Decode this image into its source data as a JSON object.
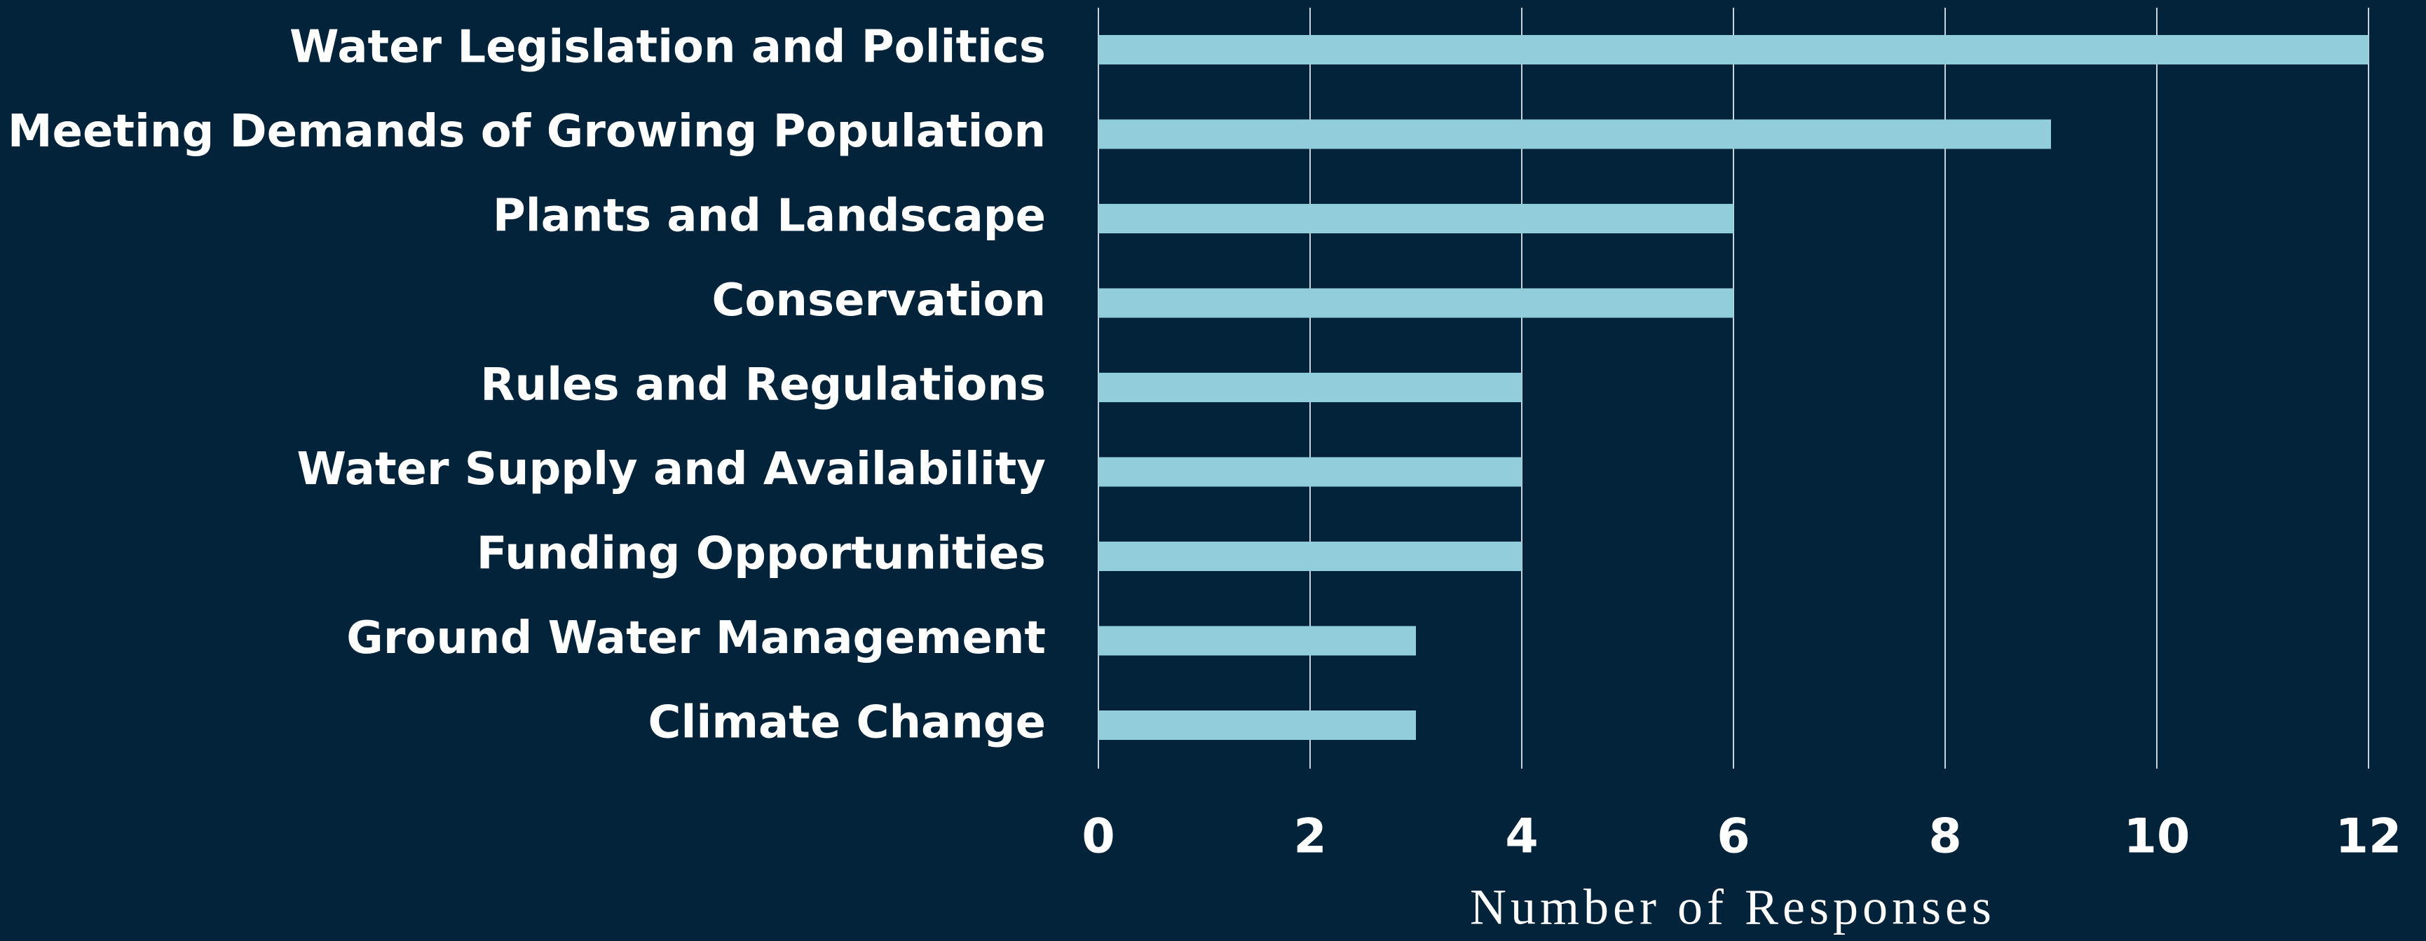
{
  "chart_data": {
    "type": "bar",
    "orientation": "horizontal",
    "categories": [
      "Water Legislation and Politics",
      "Meeting Demands of Growing Population",
      "Plants and Landscape",
      "Conservation",
      "Rules and Regulations",
      "Water Supply and Availability",
      "Funding Opportunities",
      "Ground Water Management",
      "Climate Change"
    ],
    "values": [
      12,
      9,
      6,
      6,
      4,
      4,
      4,
      3,
      3
    ],
    "color": "#91cddb",
    "x_label": "Number of Responses",
    "xlim": [
      0,
      12
    ],
    "xticks": [
      0,
      2,
      4,
      6,
      8,
      10,
      12
    ],
    "grid": true
  }
}
